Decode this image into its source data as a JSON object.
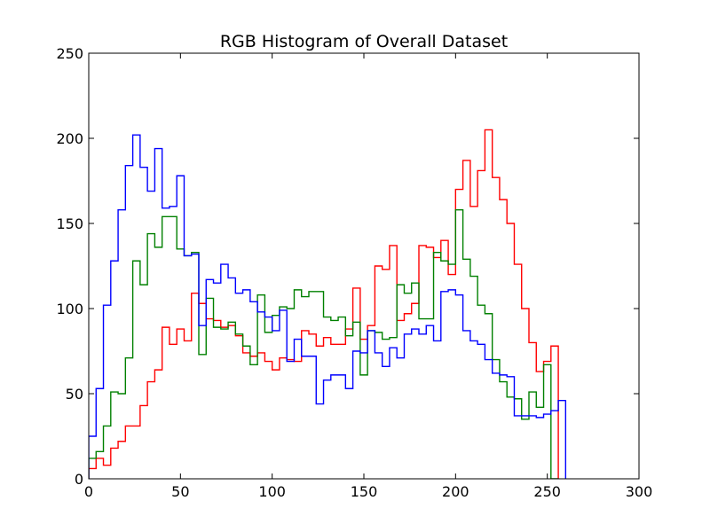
{
  "chart_data": {
    "type": "histogram-step",
    "title": "RGB Histogram of Overall Dataset",
    "xlabel": "",
    "ylabel": "",
    "xlim": [
      0,
      300
    ],
    "ylim": [
      0,
      250
    ],
    "xticks": [
      0,
      50,
      100,
      150,
      200,
      250,
      300
    ],
    "yticks": [
      0,
      50,
      100,
      150,
      200,
      250
    ],
    "grid": false,
    "legend": "none",
    "bin_width": 4,
    "bin_edges_start": 0,
    "series": [
      {
        "color": "#ff0000",
        "values": [
          6,
          12,
          8,
          18,
          22,
          31,
          31,
          43,
          57,
          64,
          89,
          79,
          88,
          81,
          109,
          103,
          94,
          93,
          89,
          90,
          84,
          74,
          72,
          74,
          69,
          64,
          71,
          70,
          69,
          87,
          85,
          78,
          83,
          79,
          79,
          88,
          112,
          82,
          90,
          125,
          123,
          137,
          93,
          97,
          103,
          137,
          136,
          130,
          140,
          120,
          170,
          187,
          160,
          181,
          205,
          177,
          164,
          150,
          126,
          100,
          80,
          63,
          69,
          78
        ]
      },
      {
        "color": "#008000",
        "values": [
          12,
          16,
          31,
          51,
          50,
          71,
          128,
          114,
          144,
          136,
          154,
          154,
          135,
          131,
          133,
          73,
          106,
          89,
          88,
          92,
          85,
          78,
          67,
          108,
          86,
          96,
          101,
          100,
          111,
          107,
          110,
          110,
          95,
          93,
          95,
          84,
          92,
          61,
          87,
          86,
          82,
          83,
          114,
          109,
          115,
          94,
          94,
          133,
          128,
          126,
          158,
          129,
          119,
          102,
          97,
          70,
          57,
          48,
          47,
          35,
          51,
          42,
          67,
          0
        ]
      },
      {
        "color": "#0000ff",
        "values": [
          25,
          53,
          102,
          128,
          158,
          184,
          202,
          183,
          169,
          194,
          159,
          160,
          178,
          131,
          132,
          90,
          117,
          115,
          126,
          118,
          109,
          111,
          104,
          98,
          95,
          87,
          99,
          69,
          82,
          72,
          72,
          44,
          58,
          61,
          61,
          53,
          75,
          74,
          87,
          74,
          66,
          77,
          71,
          85,
          88,
          85,
          90,
          81,
          110,
          111,
          108,
          87,
          81,
          79,
          70,
          62,
          61,
          60,
          37,
          37,
          37,
          36,
          38,
          40,
          46
        ]
      }
    ]
  }
}
